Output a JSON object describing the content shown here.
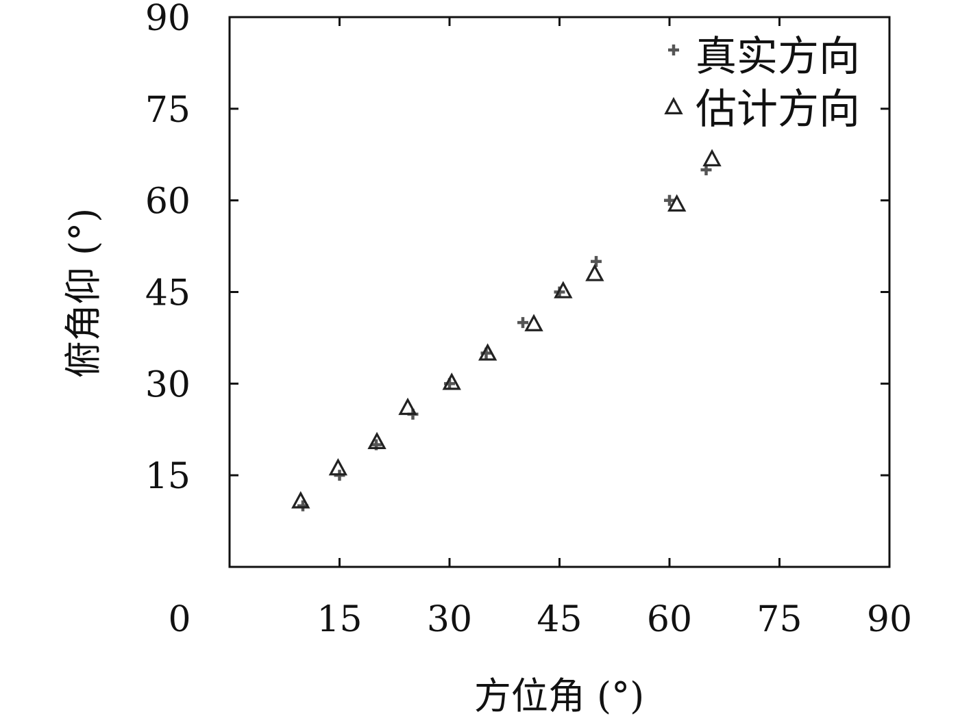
{
  "chart_data": {
    "type": "scatter",
    "title": "",
    "xlabel": "方位角 (°)",
    "ylabel": "俯角仰 (°)",
    "xlim": [
      0,
      90
    ],
    "ylim": [
      0,
      90
    ],
    "xticks": [
      "0",
      "15",
      "30",
      "45",
      "60",
      "75",
      "90"
    ],
    "yticks": [
      "15",
      "30",
      "45",
      "60",
      "75",
      "90"
    ],
    "grid": false,
    "legend_position": "top-right",
    "series": [
      {
        "name": "真实方向",
        "marker": "plus",
        "color": "#555555",
        "points": [
          {
            "x": 10,
            "y": 10
          },
          {
            "x": 15,
            "y": 15
          },
          {
            "x": 20,
            "y": 20
          },
          {
            "x": 25,
            "y": 25
          },
          {
            "x": 30,
            "y": 30
          },
          {
            "x": 35,
            "y": 35
          },
          {
            "x": 40,
            "y": 40
          },
          {
            "x": 45,
            "y": 45
          },
          {
            "x": 50,
            "y": 50
          },
          {
            "x": 60,
            "y": 60
          },
          {
            "x": 65,
            "y": 65
          }
        ]
      },
      {
        "name": "估计方向",
        "marker": "triangle",
        "color": "#222222",
        "points": [
          {
            "x": 9.7,
            "y": 10.8
          },
          {
            "x": 14.8,
            "y": 16.2
          },
          {
            "x": 20.1,
            "y": 20.5
          },
          {
            "x": 24.3,
            "y": 26.1
          },
          {
            "x": 30.3,
            "y": 30.2
          },
          {
            "x": 35.2,
            "y": 35.0
          },
          {
            "x": 41.5,
            "y": 39.8
          },
          {
            "x": 45.5,
            "y": 45.2
          },
          {
            "x": 49.8,
            "y": 48.0
          },
          {
            "x": 61.0,
            "y": 59.4
          },
          {
            "x": 65.8,
            "y": 66.8
          }
        ]
      }
    ]
  }
}
